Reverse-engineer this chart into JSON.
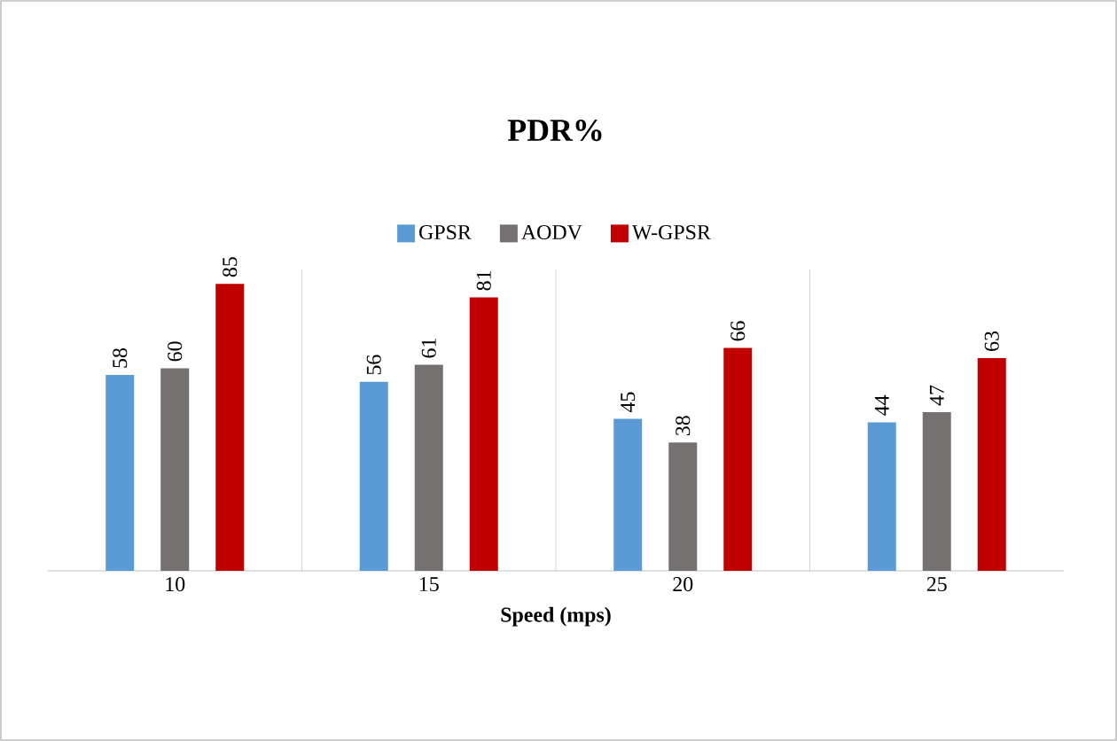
{
  "chart_data": {
    "type": "bar",
    "title": "PDR%",
    "xlabel": "Speed (mps)",
    "categories": [
      "10",
      "15",
      "20",
      "25"
    ],
    "series": [
      {
        "name": "GPSR",
        "color": "#5b9bd5",
        "values": [
          58,
          56,
          45,
          44
        ]
      },
      {
        "name": "AODV",
        "color": "#767171",
        "values": [
          60,
          61,
          38,
          47
        ]
      },
      {
        "name": "W-GPSR",
        "color": "#c00000",
        "values": [
          85,
          81,
          66,
          63
        ]
      }
    ],
    "data_labels": true,
    "legend": "top",
    "grid": "x"
  }
}
